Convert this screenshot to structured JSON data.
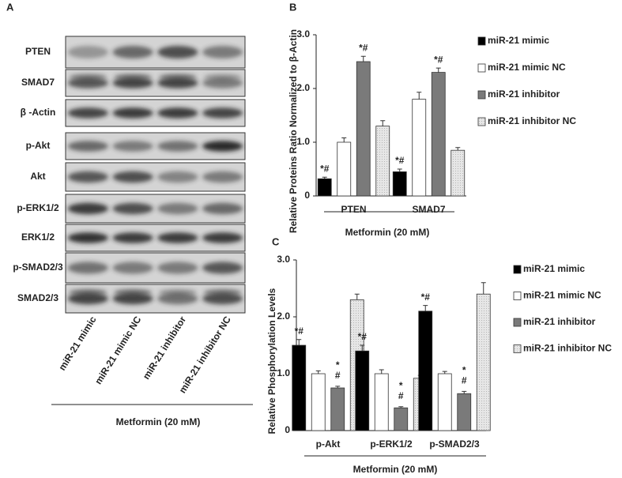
{
  "panel_labels": [
    "A",
    "B",
    "C"
  ],
  "blot": {
    "rows": [
      "PTEN",
      "SMAD7",
      "β -Actin",
      "p-Akt",
      "Akt",
      "p-ERK1/2",
      "ERK1/2",
      "p-SMAD2/3",
      "SMAD2/3"
    ],
    "columns": [
      "miR-21 mimic",
      "miR-21 mimic NC",
      "miR-21 inhibitor",
      "miR-21 inhibitor NC"
    ],
    "xlabel": "Metformin (20 mM)"
  },
  "chart_data": [
    {
      "type": "bar",
      "ylabel": "Relative Proteins Ratio Normalized to β-Actin",
      "xlabel": "Metformin (20 mM)",
      "categories": [
        "PTEN",
        "SMAD7"
      ],
      "ylim": [
        0,
        3
      ],
      "yticks": [
        0,
        {
          "value": 1,
          "label": "1.0"
        },
        {
          "value": 2,
          "label": "2.0"
        },
        {
          "value": 3,
          "label": "3.0"
        }
      ],
      "series": [
        {
          "name": "miR-21 mimic",
          "color": "#000000",
          "values": [
            0.32,
            0.45
          ],
          "errors": [
            0.03,
            0.05
          ],
          "annotations": [
            "*#",
            "*#"
          ]
        },
        {
          "name": "miR-21 mimic NC",
          "color": "#ffffff",
          "values": [
            1.0,
            1.8
          ],
          "errors": [
            0.08,
            0.13
          ],
          "annotations": [
            null,
            null
          ]
        },
        {
          "name": "miR-21 inhibitor",
          "color": "#7a7a7a",
          "values": [
            2.5,
            2.3
          ],
          "errors": [
            0.1,
            0.08
          ],
          "annotations": [
            "*#",
            "*#"
          ]
        },
        {
          "name": "miR-21 inhibitor NC",
          "color": "#dcdcdc",
          "values": [
            1.3,
            0.85
          ],
          "errors": [
            0.1,
            0.05
          ],
          "annotations": [
            null,
            null
          ]
        }
      ]
    },
    {
      "type": "bar",
      "ylabel": "Relative Phosphorylation Levels",
      "xlabel": "Metformin (20 mM)",
      "categories": [
        "p-Akt",
        "p-ERK1/2",
        "p-SMAD2/3"
      ],
      "ylim": [
        0,
        3
      ],
      "yticks": [
        0,
        {
          "value": 1,
          "label": "1.0"
        },
        {
          "value": 2,
          "label": "2.0"
        },
        {
          "value": 3,
          "label": "3.0"
        }
      ],
      "series": [
        {
          "name": "miR-21 mimic",
          "color": "#000000",
          "values": [
            1.5,
            1.4,
            2.1
          ],
          "errors": [
            0.1,
            0.1,
            0.1
          ],
          "annotations": [
            "*#",
            "*#",
            "*#"
          ]
        },
        {
          "name": "miR-21 mimic NC",
          "color": "#ffffff",
          "values": [
            1.0,
            1.0,
            1.0
          ],
          "errors": [
            0.05,
            0.07,
            0.04
          ],
          "annotations": [
            null,
            null,
            null
          ]
        },
        {
          "name": "miR-21 inhibitor",
          "color": "#7a7a7a",
          "values": [
            0.75,
            0.4,
            0.65
          ],
          "errors": [
            0.03,
            0.02,
            0.04
          ],
          "annotations": [
            "*\n#",
            "*\n#",
            "*\n#"
          ]
        },
        {
          "name": "miR-21 inhibitor NC",
          "color": "#dcdcdc",
          "values": [
            2.3,
            0.92,
            2.4
          ],
          "errors": [
            0.1,
            0.05,
            0.2
          ],
          "annotations": [
            null,
            null,
            null
          ]
        }
      ]
    }
  ]
}
